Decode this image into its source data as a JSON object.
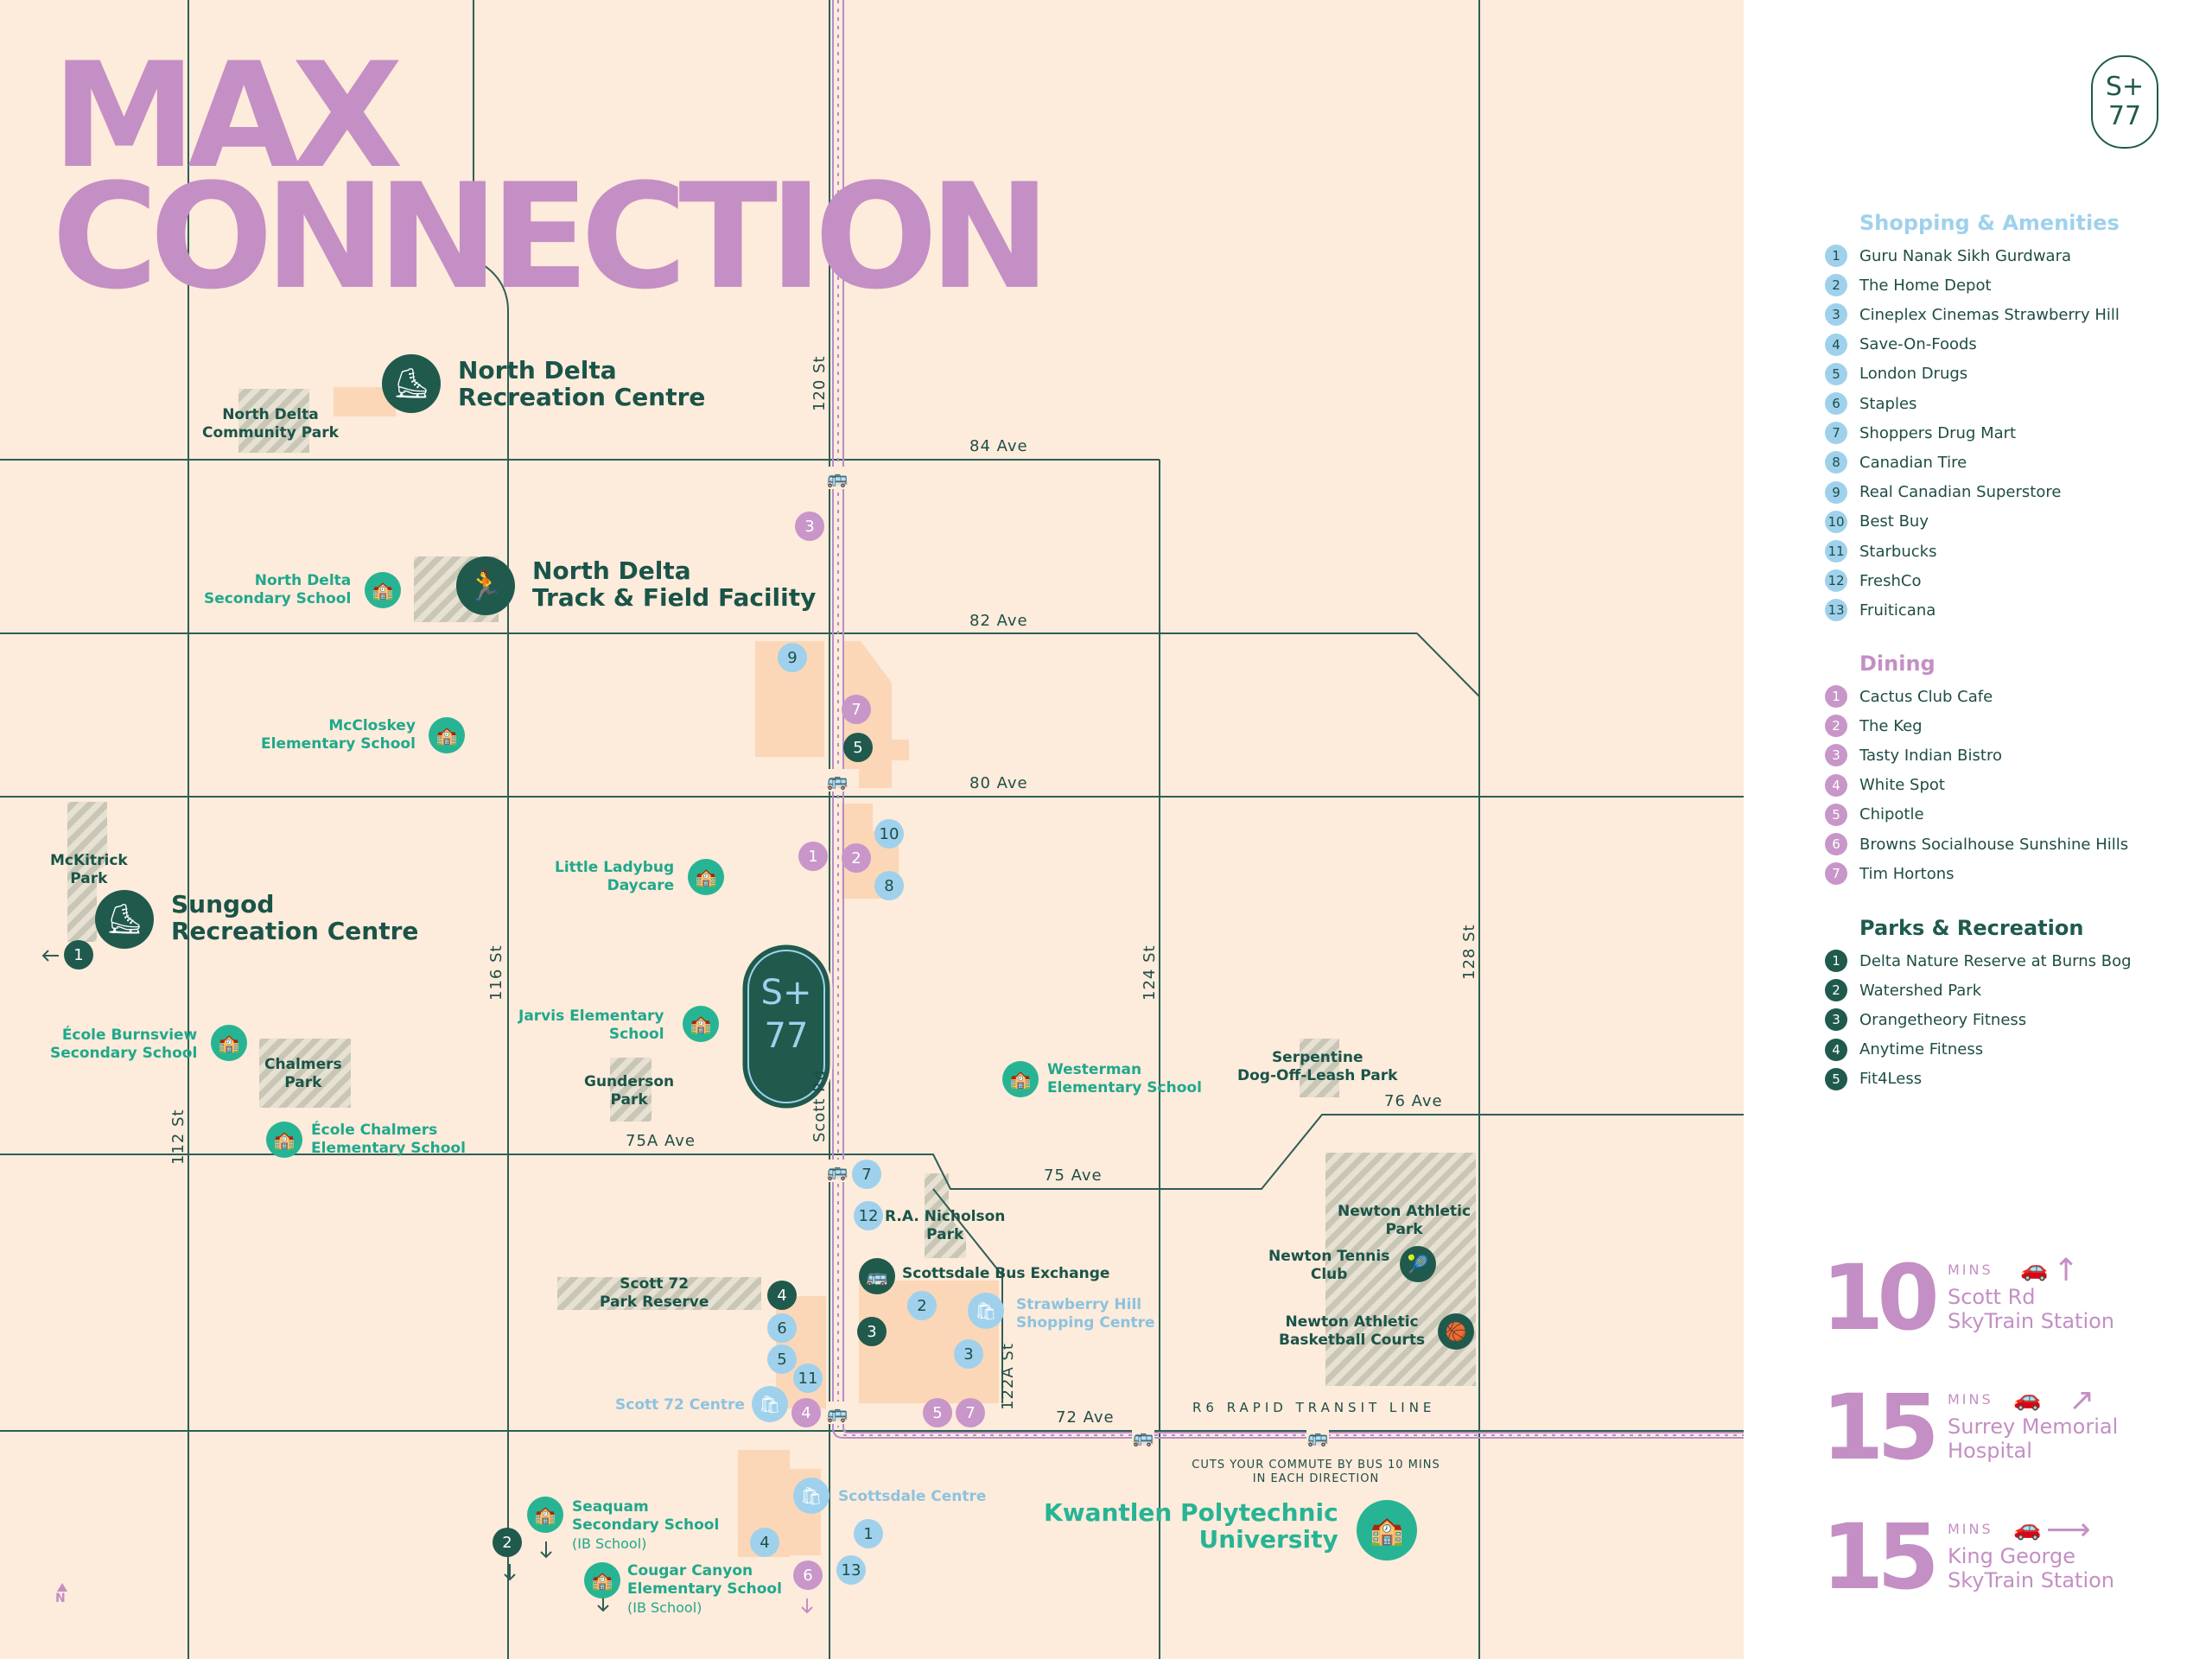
{
  "title": {
    "line1": "MAX",
    "line2": "CONNECTION"
  },
  "logo": {
    "line1": "S+",
    "line2": "77"
  },
  "streets": {
    "ave84": "84 Ave",
    "ave82": "82 Ave",
    "ave80": "80 Ave",
    "ave76": "76 Ave",
    "ave75": "75 Ave",
    "ave75a": "75A Ave",
    "ave72": "72 Ave",
    "st120": "120 St",
    "st116": "116 St",
    "st112": "112 St",
    "scott": "Scott Rd",
    "st124": "124 St",
    "st128": "128 St",
    "st122a": "122A St"
  },
  "transit": {
    "line_label": "R6 RAPID TRANSIT LINE",
    "note": "CUTS YOUR COMMUTE BY BUS 10 MINS IN EACH DIRECTION",
    "exchange": "Scottsdale Bus Exchange"
  },
  "places": {
    "north_delta_rec": "North Delta Recreation Centre",
    "track_field": "North Delta Track & Field Facility",
    "sungod": "Sungod Recreation Centre",
    "kwantlen": "Kwantlen Polytechnic University",
    "nd_community_park": "North Delta Community Park",
    "mckitrick": "McKitrick Park",
    "chalmers_park": "Chalmers Park",
    "gunderson": "Gunderson Park",
    "scott72_reserve": "Scott 72 Park Reserve",
    "nicholson": "R.A. Nicholson Park",
    "serpentine": "Serpentine Dog-Off-Leash Park",
    "newton_athletic": "Newton Athletic Park",
    "newton_tennis": "Newton Tennis Club",
    "newton_basketball": "Newton Athletic Basketball Courts"
  },
  "schools": {
    "nd_secondary": "North Delta Secondary School",
    "mccloskey": "McCloskey Elementary School",
    "ladybug": "Little Ladybug Daycare",
    "burnsview": "École Burnsview Secondary School",
    "ecole_chalmers": "École Chalmers Elementary School",
    "jarvis": "Jarvis Elementary School",
    "westerman": "Westerman Elementary School",
    "seaquam": "Seaquam Secondary School",
    "seaquam_sub": "(IB School)",
    "cougar": "Cougar Canyon Elementary School",
    "cougar_sub": "(IB School)"
  },
  "shopping_centres": {
    "strawberry": "Strawberry Hill Shopping Centre",
    "scott72": "Scott 72 Centre",
    "scottsdale": "Scottsdale Centre"
  },
  "compass": "N",
  "legend": {
    "shopping": {
      "title": "Shopping & Amenities",
      "items": [
        "Guru Nanak Sikh Gurdwara",
        "The Home Depot",
        "Cineplex Cinemas Strawberry Hill",
        "Save-On-Foods",
        "London Drugs",
        "Staples",
        "Shoppers Drug Mart",
        "Canadian Tire",
        "Real Canadian Superstore",
        "Best Buy",
        "Starbucks",
        "FreshCo",
        "Fruiticana"
      ]
    },
    "dining": {
      "title": "Dining",
      "items": [
        "Cactus Club Cafe",
        "The Keg",
        "Tasty Indian Bistro",
        "White Spot",
        "Chipotle",
        "Browns Socialhouse Sunshine Hills",
        "Tim Hortons"
      ]
    },
    "parks": {
      "title": "Parks & Recreation",
      "items": [
        "Delta Nature Reserve at Burns Bog",
        "Watershed Park",
        "Orangetheory Fitness",
        "Anytime Fitness",
        "Fit4Less"
      ]
    }
  },
  "travel_times": [
    {
      "minutes": "10",
      "unit": "MINS",
      "destination": "Scott Rd SkyTrain Station",
      "line1": "Scott Rd",
      "line2": "SkyTrain Station"
    },
    {
      "minutes": "15",
      "unit": "MINS",
      "destination": "Surrey Memorial Hospital",
      "line1": "Surrey Memorial",
      "line2": "Hospital"
    },
    {
      "minutes": "15",
      "unit": "MINS",
      "destination": "King George SkyTrain Station",
      "line1": "King George",
      "line2": "SkyTrain Station"
    }
  ],
  "colors": {
    "background": "#fdebdc",
    "dark_green": "#1f5a4d",
    "teal": "#27b494",
    "purple": "#c48fc4",
    "light_blue": "#9fd1ec",
    "road": "#2e5e55"
  },
  "icons": {
    "rec_centre": "boot-icon",
    "track": "runner-icon",
    "school": "school-icon",
    "bus": "bus-icon",
    "shopping": "shopping-bag-icon",
    "tennis": "tennis-icon",
    "basketball": "basketball-icon",
    "car": "car-icon",
    "arrow": "arrow-icon"
  }
}
